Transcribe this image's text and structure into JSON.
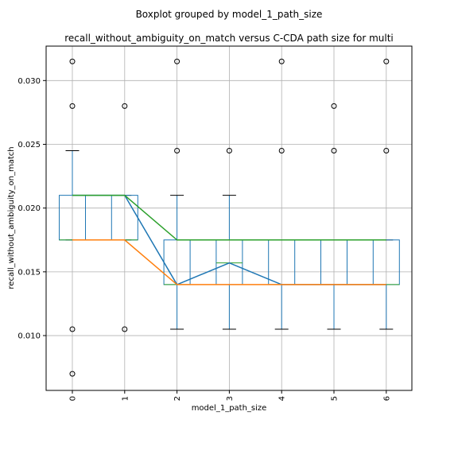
{
  "chart_data": {
    "type": "box",
    "suptitle": "Boxplot grouped by model_1_path_size",
    "title": "recall_without_ambiguity_on_match versus C-CDA path size for multi",
    "xlabel": "model_1_path_size",
    "ylabel": "recall_without_ambiguity_on_match",
    "categories": [
      "0",
      "1",
      "2",
      "3",
      "4",
      "5",
      "6"
    ],
    "ylim": [
      0.0057,
      0.0327
    ],
    "yticks": [
      0.01,
      0.015,
      0.02,
      0.025,
      0.03
    ],
    "ytick_labels": [
      "0.010",
      "0.015",
      "0.020",
      "0.025",
      "0.030"
    ],
    "grid": true,
    "boxes": [
      {
        "category": "0",
        "q1": 0.0175,
        "median": 0.0175,
        "q3": 0.021,
        "whisker_low": 0.0175,
        "whisker_high": 0.0245,
        "fliers": [
          0.0315,
          0.028,
          0.0105,
          0.007
        ]
      },
      {
        "category": "1",
        "q1": 0.0175,
        "median": 0.0175,
        "q3": 0.021,
        "whisker_low": 0.0175,
        "whisker_high": 0.021,
        "fliers": [
          0.028,
          0.0105
        ]
      },
      {
        "category": "2",
        "q1": 0.014,
        "median": 0.014,
        "q3": 0.0175,
        "whisker_low": 0.0105,
        "whisker_high": 0.021,
        "fliers": [
          0.0315,
          0.0245
        ]
      },
      {
        "category": "3",
        "q1": 0.014,
        "median": 0.0157,
        "q3": 0.0175,
        "whisker_low": 0.0105,
        "whisker_high": 0.021,
        "fliers": [
          0.0245
        ]
      },
      {
        "category": "4",
        "q1": 0.014,
        "median": 0.014,
        "q3": 0.0175,
        "whisker_low": 0.0105,
        "whisker_high": 0.0175,
        "fliers": [
          0.0315,
          0.0245
        ]
      },
      {
        "category": "5",
        "q1": 0.014,
        "median": 0.014,
        "q3": 0.0175,
        "whisker_low": 0.0105,
        "whisker_high": 0.0175,
        "fliers": [
          0.028,
          0.0245
        ]
      },
      {
        "category": "6",
        "q1": 0.014,
        "median": 0.014,
        "q3": 0.0175,
        "whisker_low": 0.0105,
        "whisker_high": 0.0175,
        "fliers": [
          0.0315,
          0.0245
        ]
      }
    ],
    "lines": [
      {
        "color": "#1f77b4",
        "values": [
          0.021,
          0.021,
          0.014,
          0.0157,
          0.014,
          0.014,
          0.014
        ]
      },
      {
        "color": "#ff7f0e",
        "values": [
          0.0175,
          0.0175,
          0.014,
          0.014,
          0.014,
          0.014,
          0.014
        ]
      },
      {
        "color": "#2ca02c",
        "values": [
          0.021,
          0.021,
          0.0175,
          0.0175,
          0.0175,
          0.0175,
          0.0175
        ]
      }
    ],
    "colors": {
      "box": "#1f77b4",
      "median": "#2ca02c",
      "whisker": "#1f77b4",
      "cap": "#000000",
      "flier": "#000000",
      "grid": "#b0b0b0"
    }
  }
}
